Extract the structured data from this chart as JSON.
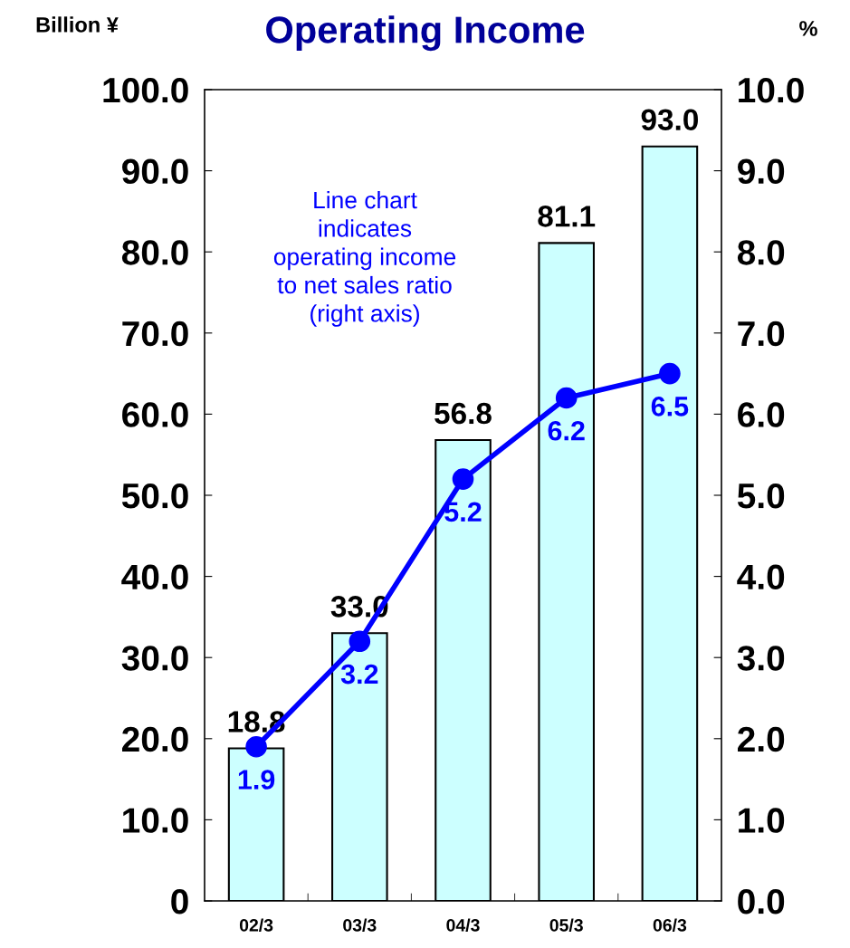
{
  "chart_data": {
    "type": "bar",
    "title": "Operating Income",
    "ylabel": "Billion ¥",
    "y2label": "%",
    "categories": [
      "02/3",
      "03/3",
      "04/3",
      "05/3",
      "06/3"
    ],
    "series": [
      {
        "color": "#ccffff",
        "values": [
          18.8,
          33.0,
          56.8,
          81.1,
          93.0
        ],
        "value_labels": [
          "18.8",
          "33.0",
          "56.8",
          "81.1",
          "93.0"
        ]
      },
      {
        "type": "line",
        "axis": "y2",
        "color": "#0000ff",
        "values": [
          1.9,
          3.2,
          5.2,
          6.2,
          6.5
        ]
      }
    ],
    "ylim": [
      0,
      100
    ],
    "yticks": [
      {
        "value": 0,
        "label": "0"
      },
      {
        "value": 10,
        "label": "10.0"
      },
      {
        "value": 20,
        "label": "20.0"
      },
      {
        "value": 30,
        "label": "30.0"
      },
      {
        "value": 40,
        "label": "40.0"
      },
      {
        "value": 50,
        "label": "50.0"
      },
      {
        "value": 60,
        "label": "60.0"
      },
      {
        "value": 70,
        "label": "70.0"
      },
      {
        "value": 80,
        "label": "80.0"
      },
      {
        "value": 90,
        "label": "90.0"
      },
      {
        "value": 100,
        "label": "100.0"
      }
    ],
    "y2lim": [
      0,
      10
    ],
    "y2ticks": [
      {
        "value": 0,
        "label": "0.0"
      },
      {
        "value": 1,
        "label": "1.0"
      },
      {
        "value": 2,
        "label": "2.0"
      },
      {
        "value": 3,
        "label": "3.0"
      },
      {
        "value": 4,
        "label": "4.0"
      },
      {
        "value": 5,
        "label": "5.0"
      },
      {
        "value": 6,
        "label": "6.0"
      },
      {
        "value": 7,
        "label": "7.0"
      },
      {
        "value": 8,
        "label": "8.0"
      },
      {
        "value": 9,
        "label": "9.0"
      },
      {
        "value": 10,
        "label": "10.0"
      }
    ],
    "data_labels": true,
    "marker": "circle",
    "line_style": "solid",
    "grid": false,
    "legend": false,
    "annotations": [
      "Line chart\nindicates\noperating income\nto net sales ratio\n(right axis)"
    ]
  }
}
